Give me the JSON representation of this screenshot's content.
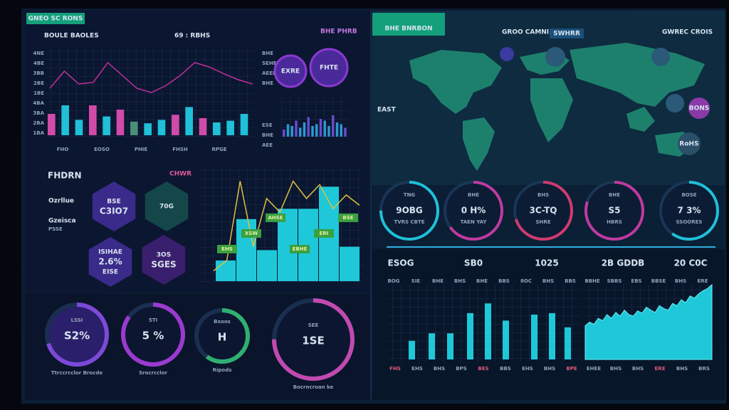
{
  "header": {
    "tag": "GNEO SC RONS",
    "title": "BOULE BAOLES",
    "subtitle": "69 : RBHS",
    "badge": "BHE PHRB"
  },
  "trend": {
    "y_labels": [
      "4NE",
      "4BE",
      "3BB",
      "2BE",
      "1BE",
      "4BA",
      "3BA",
      "2BA",
      "1BA"
    ],
    "x_labels": [
      "FHO",
      "EOSO",
      "PHIE",
      "FHSH",
      "RPGE"
    ],
    "bar_colors": [
      "#d04aa8",
      "#1fc0d8",
      "#1fc0d8",
      "#d04aa8",
      "#1fc0d8",
      "#d04aa8",
      "#4a8f7a",
      "#1fc0d8",
      "#1fc0d8",
      "#d04aa8",
      "#1fc0d8",
      "#d04aa8",
      "#1fc0d8",
      "#1fc0d8",
      "#1fc0d8"
    ],
    "bar_values": [
      25,
      35,
      18,
      35,
      22,
      30,
      16,
      14,
      18,
      24,
      33,
      20,
      15,
      17,
      25
    ],
    "line_values": [
      55,
      75,
      60,
      62,
      85,
      70,
      55,
      50,
      58,
      70,
      85,
      80,
      72,
      65,
      60
    ],
    "line_color": "#c0309a"
  },
  "side": {
    "labels": [
      "BHE",
      "SEHE",
      "AEEE",
      "BHE",
      "ESE",
      "BHE",
      "AEE"
    ],
    "circles": [
      "EXRE",
      "FHTE"
    ],
    "mini_bars": [
      20,
      35,
      30,
      45,
      25,
      40,
      55,
      30,
      35,
      50,
      45,
      30,
      60,
      40,
      35,
      25
    ]
  },
  "kpi_left": {
    "title": "FHDRN",
    "badge": "CHWR",
    "labels": [
      "Ozrllue",
      "Gzeisca",
      "PSSE"
    ],
    "hexes": [
      {
        "lines": [
          "BSE",
          "C3IO7"
        ],
        "color": "#3a2a8a"
      },
      {
        "lines": [
          "70G"
        ],
        "color": "#13474a"
      },
      {
        "lines": [
          "ISIHAE",
          "2.6%",
          "EISE"
        ],
        "color": "#3a2a8a"
      },
      {
        "lines": [
          "3OS",
          "SGES"
        ],
        "color": "#3a1f6e"
      }
    ]
  },
  "big_chart": {
    "bar_values": [
      30,
      90,
      45,
      105,
      105,
      137,
      50
    ],
    "line_values": [
      15,
      30,
      145,
      50,
      120,
      100,
      145,
      120,
      140,
      105,
      125,
      110
    ],
    "tags": [
      "EHS",
      "XSW",
      "AHSE",
      "EBHE",
      "ERI",
      "BSE"
    ]
  },
  "gauges": [
    {
      "label": "LSSI",
      "value": "S2%",
      "fill": 70,
      "caption": "Ttrccrcclor Brocde",
      "color": "#7b4ad8"
    },
    {
      "label": "5TI",
      "value": "5 %",
      "fill": 85,
      "caption": "Srocrcclor",
      "color": "#9b3ad0"
    },
    {
      "label": "Bxoos",
      "value": "H",
      "fill": 60,
      "caption": "Ripods",
      "color": "#2fb070"
    },
    {
      "label": "SEE",
      "value": "1SE",
      "fill": 75,
      "caption": "Bocrncroan ke",
      "color": "#c04ab0"
    }
  ],
  "map": {
    "tag": "BHE BNRBON",
    "title": "GROO CAMNI",
    "badge": "SWHRR",
    "legend": "GWREC CROIS",
    "label": "EAST",
    "pins": [
      "BONS",
      "RoHS"
    ]
  },
  "rings": [
    {
      "top": "TNG",
      "value": "9OBG",
      "bottom": "TVRS CBTE",
      "fill": 75,
      "color": "#1fc0d8"
    },
    {
      "top": "BHE",
      "value": "0 H%",
      "bottom": "TAEN YAY",
      "fill": 65,
      "color": "#c03aa0"
    },
    {
      "top": "BHS",
      "value": "3C-TQ",
      "bottom": "SHRE",
      "fill": 70,
      "color": "#d03a70"
    },
    {
      "top": "BHE",
      "value": "S5",
      "bottom": "HBRS",
      "fill": 80,
      "color": "#c03aa0"
    },
    {
      "top": "BOSE",
      "value": "7 3%",
      "bottom": "SSOORES",
      "fill": 60,
      "color": "#1fc0d8"
    }
  ],
  "stats": [
    "ESOG",
    "SB0",
    "1025",
    "2B GDDB",
    "20 C0C"
  ],
  "bottom_chart": {
    "header_labels": [
      "BOG",
      "SIE",
      "BHE",
      "BHS",
      "BHE",
      "BBS",
      "8OC",
      "BHS",
      "BBS",
      "BBHE",
      "SBBS",
      "EBS",
      "BBSE",
      "BHS",
      "ERE"
    ],
    "x_labels": [
      "FHS",
      "EHS",
      "BHS",
      "BPS",
      "BES",
      "BBS",
      "EHS",
      "BHS",
      "BPE",
      "EHEE",
      "BHS",
      "BHS",
      "ERE",
      "BHS",
      "BRS"
    ],
    "bar_values": [
      25,
      35,
      35,
      62,
      75,
      52,
      60,
      62,
      43
    ],
    "area_values": [
      45,
      50,
      47,
      55,
      52,
      60,
      55,
      63,
      58,
      66,
      60,
      58,
      65,
      62,
      70,
      66,
      63,
      72,
      68,
      66,
      75,
      72,
      80,
      76,
      85,
      82,
      88,
      92,
      95,
      100
    ]
  }
}
